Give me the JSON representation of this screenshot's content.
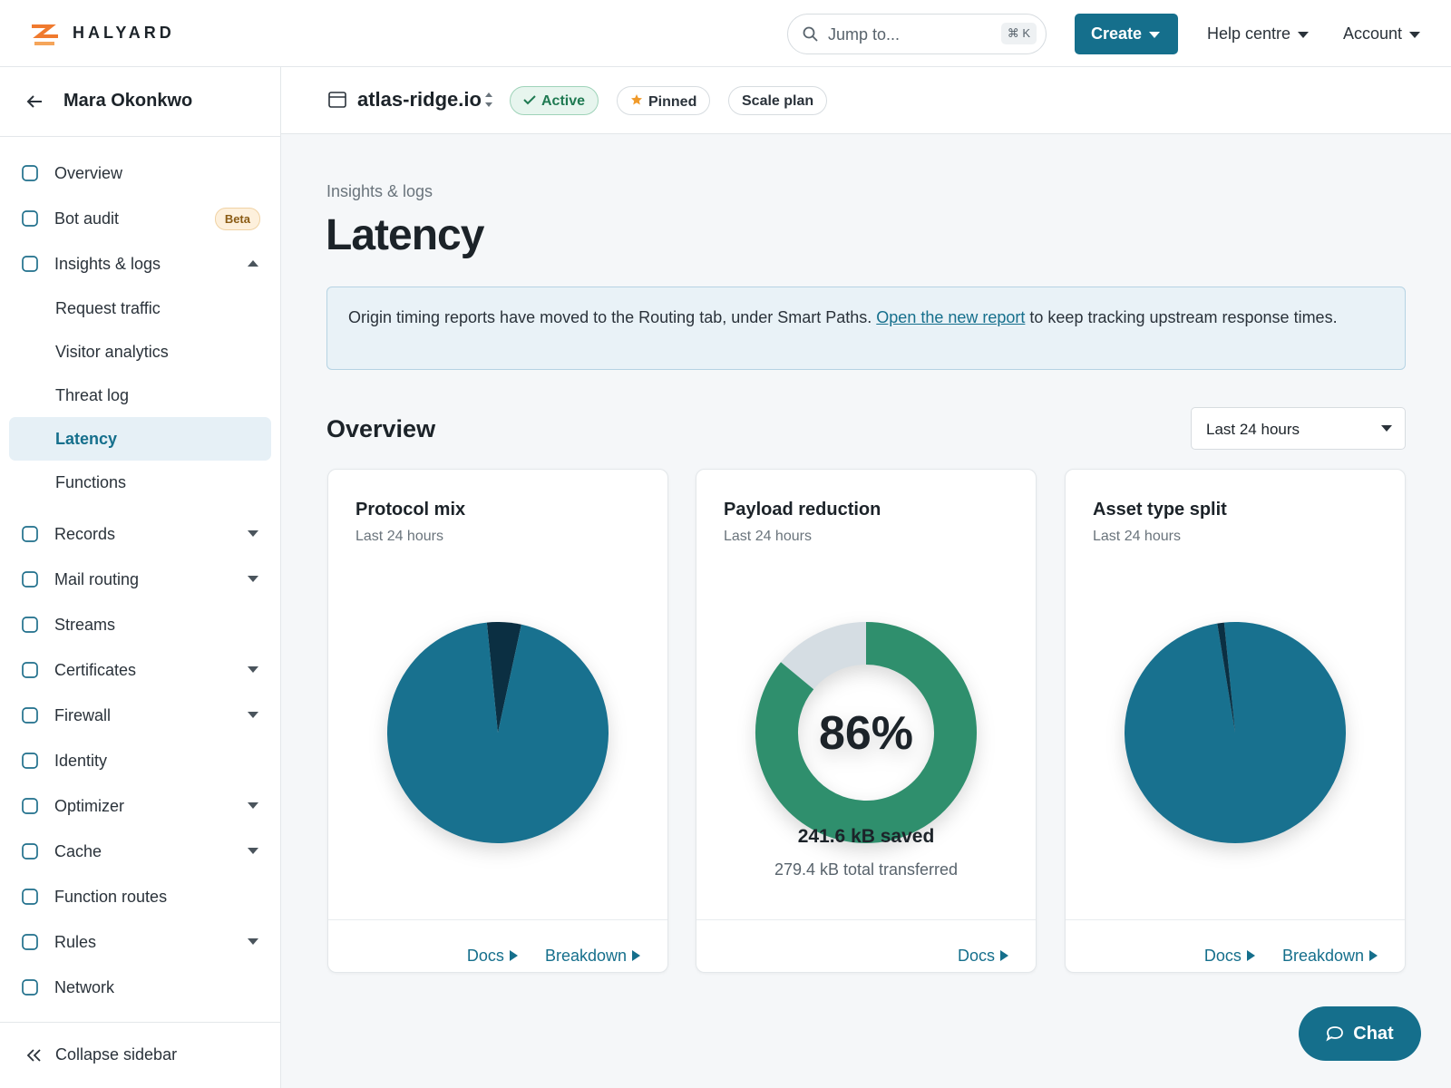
{
  "header": {
    "brand": "HALYARD",
    "search_placeholder": "Jump to...",
    "search_shortcut": "⌘ K",
    "create": "Create",
    "help": "Help centre",
    "account": "Account"
  },
  "sidebar": {
    "user": "Mara Okonkwo",
    "items": [
      {
        "label": "Overview"
      },
      {
        "label": "Bot audit",
        "badge": "Beta"
      },
      {
        "label": "Insights & logs",
        "expanded": true,
        "children": [
          {
            "label": "Request traffic"
          },
          {
            "label": "Visitor analytics"
          },
          {
            "label": "Threat log"
          },
          {
            "label": "Latency",
            "active": true
          },
          {
            "label": "Functions"
          }
        ]
      },
      {
        "label": "Records",
        "expanded": false
      },
      {
        "label": "Mail routing",
        "expanded": false
      },
      {
        "label": "Streams"
      },
      {
        "label": "Certificates",
        "expanded": false
      },
      {
        "label": "Firewall",
        "expanded": false
      },
      {
        "label": "Identity"
      },
      {
        "label": "Optimizer",
        "expanded": false
      },
      {
        "label": "Cache",
        "expanded": false
      },
      {
        "label": "Function routes"
      },
      {
        "label": "Rules",
        "expanded": false
      },
      {
        "label": "Network"
      }
    ],
    "collapse": "Collapse sidebar"
  },
  "zone": {
    "name": "atlas-ridge.io",
    "status": "Active",
    "pinned": "Pinned",
    "plan": "Scale plan"
  },
  "page": {
    "breadcrumb": "Insights & logs",
    "title": "Latency",
    "notice": {
      "before": "Origin timing reports have moved to the Routing tab, under Smart Paths. ",
      "link": "Open the new report",
      "after": " to keep tracking upstream response times."
    },
    "section": "Overview",
    "range": "Last 24 hours"
  },
  "cards": [
    {
      "title": "Protocol mix",
      "subtitle": "Last 24 hours",
      "chart": {
        "type": "pie",
        "values": [
          5,
          95
        ],
        "colors": [
          "#0b2f42",
          "#18718f"
        ]
      },
      "links": [
        "Docs",
        "Breakdown"
      ]
    },
    {
      "title": "Payload reduction",
      "subtitle": "Last 24 hours",
      "chart": {
        "type": "donut",
        "value": 86,
        "label": "86%",
        "colors": [
          "#2f8f6d",
          "#d5dde3"
        ]
      },
      "stat": "241.6 kB saved",
      "detail": "279.4 kB total transferred",
      "links": [
        "Docs"
      ]
    },
    {
      "title": "Asset type split",
      "subtitle": "Last 24 hours",
      "chart": {
        "type": "pie",
        "values": [
          99,
          1
        ],
        "colors": [
          "#18718f",
          "#0b2f42"
        ]
      },
      "links": [
        "Docs",
        "Breakdown"
      ]
    }
  ],
  "chat": "Chat"
}
